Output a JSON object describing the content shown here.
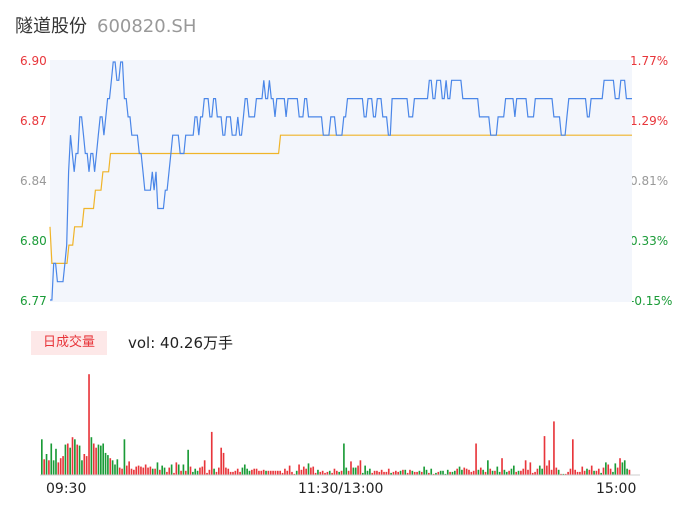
{
  "stock": {
    "name": "隧道股份",
    "code": "600820.SH"
  },
  "colors": {
    "price_line": "#4a86e8",
    "avg_line": "#f0b429",
    "up": "#e8363b",
    "down": "#1a9b37",
    "area": "#f3f6fc"
  },
  "price_axis": {
    "prices": [
      "6.90",
      "6.87",
      "6.84",
      "6.80",
      "6.77"
    ],
    "percents": [
      "1.77%",
      "1.29%",
      "0.81%",
      "0.33%",
      "-0.15%"
    ]
  },
  "volume": {
    "tag": "日成交量",
    "label": "vol: 40.26万手"
  },
  "x_axis": {
    "labels": [
      "09:30",
      "11:30/13:00",
      "15:00"
    ]
  },
  "chart_data": {
    "type": "line",
    "ylim": [
      6.77,
      6.9
    ],
    "series": [
      {
        "name": "price",
        "values": [
          6.77,
          6.77,
          6.79,
          6.79,
          6.78,
          6.78,
          6.78,
          6.78,
          6.79,
          6.8,
          6.84,
          6.86,
          6.85,
          6.84,
          6.85,
          6.85,
          6.87,
          6.87,
          6.86,
          6.85,
          6.85,
          6.84,
          6.85,
          6.85,
          6.84,
          6.85,
          6.86,
          6.87,
          6.87,
          6.86,
          6.87,
          6.88,
          6.88,
          6.89,
          6.9,
          6.9,
          6.89,
          6.89,
          6.9,
          6.9,
          6.88,
          6.88,
          6.87,
          6.87,
          6.86,
          6.86,
          6.86,
          6.86,
          6.85,
          6.85,
          6.84,
          6.83,
          6.83,
          6.83,
          6.83,
          6.84,
          6.83,
          6.84,
          6.82,
          6.82,
          6.82,
          6.82,
          6.83,
          6.83,
          6.84,
          6.85,
          6.86,
          6.86,
          6.86,
          6.86,
          6.85,
          6.85,
          6.85,
          6.86,
          6.86,
          6.86,
          6.86,
          6.86,
          6.87,
          6.87,
          6.86,
          6.87,
          6.87,
          6.88,
          6.88,
          6.88,
          6.87,
          6.87,
          6.88,
          6.88,
          6.87,
          6.87,
          6.87,
          6.86,
          6.86,
          6.87,
          6.87,
          6.87,
          6.86,
          6.86,
          6.86,
          6.87,
          6.86,
          6.86,
          6.87,
          6.88,
          6.88,
          6.87,
          6.87,
          6.87,
          6.87,
          6.88,
          6.88,
          6.88,
          6.88,
          6.89,
          6.88,
          6.88,
          6.89,
          6.88,
          6.88,
          6.87,
          6.88,
          6.88,
          6.88,
          6.88,
          6.88,
          6.87,
          6.88,
          6.88,
          6.88,
          6.88,
          6.88,
          6.88,
          6.87,
          6.87,
          6.87,
          6.88,
          6.88,
          6.87,
          6.87,
          6.87,
          6.87,
          6.87,
          6.87,
          6.87,
          6.87,
          6.86,
          6.86,
          6.86,
          6.86,
          6.87,
          6.87,
          6.87,
          6.86,
          6.86,
          6.86,
          6.86,
          6.87,
          6.87,
          6.88,
          6.88,
          6.88,
          6.88,
          6.88,
          6.88,
          6.88,
          6.88,
          6.88,
          6.87,
          6.87,
          6.88,
          6.88,
          6.88,
          6.87,
          6.87,
          6.88,
          6.88,
          6.88,
          6.87,
          6.87,
          6.87,
          6.86,
          6.86,
          6.88,
          6.88,
          6.88,
          6.88,
          6.88,
          6.88,
          6.88,
          6.88,
          6.88,
          6.87,
          6.87,
          6.87,
          6.88,
          6.88,
          6.88,
          6.88,
          6.88,
          6.88,
          6.88,
          6.88,
          6.89,
          6.89,
          6.88,
          6.88,
          6.89,
          6.89,
          6.89,
          6.88,
          6.88,
          6.89,
          6.88,
          6.88,
          6.89,
          6.89,
          6.89,
          6.89,
          6.89,
          6.89,
          6.88,
          6.88,
          6.88,
          6.88,
          6.88,
          6.88,
          6.88,
          6.88,
          6.88,
          6.87,
          6.87,
          6.87,
          6.87,
          6.87,
          6.87,
          6.86,
          6.86,
          6.86,
          6.86,
          6.87,
          6.87,
          6.87,
          6.87,
          6.88,
          6.88,
          6.88,
          6.88,
          6.88,
          6.87,
          6.88,
          6.88,
          6.88,
          6.88,
          6.88,
          6.88,
          6.87,
          6.87,
          6.87,
          6.87,
          6.88,
          6.88,
          6.88,
          6.88,
          6.88,
          6.88,
          6.88,
          6.88,
          6.88,
          6.88,
          6.87,
          6.87,
          6.87,
          6.87,
          6.86,
          6.86,
          6.86,
          6.87,
          6.88,
          6.88,
          6.88,
          6.88,
          6.88,
          6.88,
          6.88,
          6.88,
          6.88,
          6.88,
          6.87,
          6.87,
          6.88,
          6.88,
          6.88,
          6.88,
          6.88,
          6.88,
          6.88,
          6.89,
          6.89,
          6.89,
          6.89,
          6.89,
          6.89,
          6.88,
          6.88,
          6.88,
          6.89,
          6.89,
          6.89,
          6.88,
          6.88,
          6.88,
          6.88
        ]
      },
      {
        "name": "average",
        "values": [
          6.81,
          6.79,
          6.79,
          6.79,
          6.79,
          6.79,
          6.79,
          6.79,
          6.79,
          6.79,
          6.8,
          6.8,
          6.8,
          6.81,
          6.81,
          6.81,
          6.81,
          6.81,
          6.82,
          6.82,
          6.82,
          6.82,
          6.82,
          6.82,
          6.83,
          6.83,
          6.83,
          6.83,
          6.84,
          6.84,
          6.84,
          6.84,
          6.85,
          6.85,
          6.85,
          6.85,
          6.85,
          6.85,
          6.85,
          6.85,
          6.85,
          6.85,
          6.85,
          6.85,
          6.85,
          6.85,
          6.85,
          6.85,
          6.85,
          6.85,
          6.85,
          6.85,
          6.85,
          6.85,
          6.85,
          6.85,
          6.85,
          6.85,
          6.85,
          6.85,
          6.85,
          6.85,
          6.85,
          6.85,
          6.85,
          6.85,
          6.85,
          6.85,
          6.85,
          6.85,
          6.85,
          6.85,
          6.85,
          6.85,
          6.85,
          6.85,
          6.85,
          6.85,
          6.85,
          6.85,
          6.85,
          6.85,
          6.85,
          6.85,
          6.85,
          6.85,
          6.85,
          6.85,
          6.85,
          6.85,
          6.85,
          6.85,
          6.85,
          6.85,
          6.85,
          6.85,
          6.85,
          6.85,
          6.85,
          6.85,
          6.85,
          6.85,
          6.85,
          6.85,
          6.85,
          6.85,
          6.85,
          6.85,
          6.85,
          6.85,
          6.85,
          6.85,
          6.85,
          6.85,
          6.85,
          6.85,
          6.85,
          6.85,
          6.85,
          6.85,
          6.85,
          6.85,
          6.86,
          6.86,
          6.86,
          6.86,
          6.86,
          6.86,
          6.86,
          6.86,
          6.86,
          6.86,
          6.86,
          6.86,
          6.86,
          6.86,
          6.86,
          6.86,
          6.86,
          6.86,
          6.86,
          6.86,
          6.86,
          6.86,
          6.86,
          6.86,
          6.86,
          6.86,
          6.86,
          6.86,
          6.86,
          6.86,
          6.86,
          6.86,
          6.86,
          6.86,
          6.86,
          6.86,
          6.86,
          6.86,
          6.86,
          6.86,
          6.86,
          6.86,
          6.86,
          6.86,
          6.86,
          6.86,
          6.86,
          6.86,
          6.86,
          6.86,
          6.86,
          6.86,
          6.86,
          6.86,
          6.86,
          6.86,
          6.86,
          6.86,
          6.86,
          6.86,
          6.86,
          6.86,
          6.86,
          6.86,
          6.86,
          6.86,
          6.86,
          6.86,
          6.86,
          6.86,
          6.86,
          6.86,
          6.86,
          6.86,
          6.86,
          6.86,
          6.86,
          6.86,
          6.86,
          6.86,
          6.86,
          6.86,
          6.86,
          6.86,
          6.86,
          6.86,
          6.86,
          6.86,
          6.86,
          6.86,
          6.86,
          6.86,
          6.86,
          6.86,
          6.86,
          6.86,
          6.86,
          6.86,
          6.86,
          6.86,
          6.86,
          6.86,
          6.86,
          6.86,
          6.86,
          6.86,
          6.86,
          6.86,
          6.86,
          6.86,
          6.86,
          6.86,
          6.86,
          6.86,
          6.86,
          6.86,
          6.86,
          6.86,
          6.86,
          6.86,
          6.86,
          6.86,
          6.86,
          6.86,
          6.86,
          6.86,
          6.86,
          6.86,
          6.86,
          6.86,
          6.86,
          6.86,
          6.86,
          6.86,
          6.86,
          6.86,
          6.86,
          6.86,
          6.86,
          6.86,
          6.86,
          6.86,
          6.86,
          6.86,
          6.86,
          6.86,
          6.86,
          6.86,
          6.86,
          6.86,
          6.86,
          6.86,
          6.86,
          6.86,
          6.86,
          6.86,
          6.86,
          6.86,
          6.86,
          6.86,
          6.86,
          6.86,
          6.86,
          6.86,
          6.86,
          6.86,
          6.86,
          6.86,
          6.86,
          6.86,
          6.86,
          6.86,
          6.86,
          6.86,
          6.86,
          6.86,
          6.86,
          6.86,
          6.86,
          6.86,
          6.86,
          6.86,
          6.86,
          6.86,
          6.86,
          6.86,
          6.86
        ]
      }
    ],
    "volume": {
      "values": [
        0.34,
        0.15,
        0.2,
        0.14,
        0.3,
        0.14,
        0.25,
        0.12,
        0.16,
        0.18,
        0.29,
        0.3,
        0.26,
        0.36,
        0.34,
        0.29,
        0.28,
        0.14,
        0.2,
        0.18,
        0.96,
        0.36,
        0.3,
        0.26,
        0.29,
        0.28,
        0.3,
        0.21,
        0.19,
        0.16,
        0.14,
        0.1,
        0.15,
        0.07,
        0.06,
        0.34,
        0.09,
        0.13,
        0.06,
        0.05,
        0.08,
        0.09,
        0.08,
        0.07,
        0.1,
        0.07,
        0.08,
        0.06,
        0.06,
        0.12,
        0.05,
        0.09,
        0.07,
        0.03,
        0.07,
        0.1,
        0.02,
        0.12,
        0.1,
        0.04,
        0.1,
        0.04,
        0.24,
        0.08,
        0.03,
        0.06,
        0.04,
        0.07,
        0.08,
        0.14,
        0.02,
        0.05,
        0.41,
        0.06,
        0.03,
        0.07,
        0.26,
        0.21,
        0.07,
        0.06,
        0.03,
        0.03,
        0.04,
        0.06,
        0.03,
        0.07,
        0.1,
        0.06,
        0.04,
        0.05,
        0.06,
        0.06,
        0.04,
        0.04,
        0.05,
        0.04,
        0.04,
        0.04,
        0.04,
        0.04,
        0.04,
        0.04,
        0.02,
        0.06,
        0.04,
        0.09,
        0.03,
        0.01,
        0.04,
        0.1,
        0.05,
        0.08,
        0.06,
        0.11,
        0.07,
        0.08,
        0.02,
        0.05,
        0.03,
        0.04,
        0.02,
        0.03,
        0.04,
        0.02,
        0.06,
        0.04,
        0.03,
        0.04,
        0.3,
        0.07,
        0.04,
        0.13,
        0.07,
        0.07,
        0.09,
        0.14,
        0.02,
        0.09,
        0.04,
        0.06,
        0.02,
        0.04,
        0.04,
        0.03,
        0.05,
        0.03,
        0.03,
        0.06,
        0.02,
        0.03,
        0.04,
        0.03,
        0.04,
        0.05,
        0.05,
        0.02,
        0.05,
        0.04,
        0.03,
        0.03,
        0.04,
        0.03,
        0.08,
        0.05,
        0.02,
        0.06,
        0.01,
        0.02,
        0.03,
        0.04,
        0.04,
        0.01,
        0.05,
        0.03,
        0.03,
        0.04,
        0.06,
        0.08,
        0.05,
        0.07,
        0.06,
        0.05,
        0.03,
        0.04,
        0.3,
        0.05,
        0.07,
        0.05,
        0.03,
        0.14,
        0.06,
        0.04,
        0.04,
        0.08,
        0.03,
        0.16,
        0.05,
        0.03,
        0.04,
        0.06,
        0.09,
        0.03,
        0.04,
        0.04,
        0.06,
        0.14,
        0.05,
        0.12,
        0.02,
        0.03,
        0.06,
        0.09,
        0.06,
        0.37,
        0.09,
        0.14,
        0.05,
        0.51,
        0.07,
        0.05,
        0.01,
        0.01,
        0.01,
        0.03,
        0.06,
        0.34,
        0.05,
        0.03,
        0.03,
        0.08,
        0.04,
        0.06,
        0.05,
        0.09,
        0.04,
        0.04,
        0.06,
        0.02,
        0.07,
        0.12,
        0.1,
        0.06,
        0.03,
        0.11,
        0.07,
        0.16,
        0.12,
        0.14,
        0.06,
        0.05
      ],
      "colors": [
        "d",
        "u",
        "d",
        "u",
        "d",
        "d",
        "d",
        "u",
        "u",
        "u",
        "d",
        "u",
        "d",
        "u",
        "d",
        "u",
        "d",
        "d",
        "u",
        "u",
        "u",
        "d",
        "u",
        "u",
        "d",
        "d",
        "d",
        "d",
        "d",
        "u",
        "d",
        "d",
        "d",
        "u",
        "u",
        "d",
        "u",
        "u",
        "u",
        "u",
        "u",
        "u",
        "u",
        "u",
        "u",
        "u",
        "u",
        "d",
        "u",
        "d",
        "u",
        "d",
        "d",
        "u",
        "u",
        "d",
        "u",
        "u",
        "d",
        "u",
        "d",
        "u",
        "d",
        "u",
        "d",
        "d",
        "d",
        "u",
        "u",
        "u",
        "u",
        "u",
        "u",
        "d",
        "u",
        "u",
        "u",
        "u",
        "u",
        "u",
        "u",
        "u",
        "u",
        "u",
        "u",
        "d",
        "d",
        "d",
        "d",
        "u",
        "u",
        "u",
        "u",
        "u",
        "u",
        "d",
        "u",
        "u",
        "u",
        "u",
        "u",
        "u",
        "u",
        "u",
        "u",
        "u",
        "u",
        "u",
        "d",
        "u",
        "u",
        "u",
        "u",
        "d",
        "u",
        "u",
        "u",
        "d",
        "u",
        "u",
        "u",
        "u",
        "d",
        "u",
        "u",
        "u",
        "d",
        "u",
        "d",
        "d",
        "u",
        "u",
        "d",
        "d",
        "u",
        "u",
        "d",
        "d",
        "d",
        "d",
        "u",
        "u",
        "u",
        "u",
        "u",
        "u",
        "u",
        "u",
        "d",
        "u",
        "u",
        "u",
        "d",
        "u",
        "d",
        "u",
        "u",
        "d",
        "u",
        "u",
        "d",
        "u",
        "d",
        "d",
        "u",
        "d",
        "u",
        "d",
        "u",
        "d",
        "d",
        "d",
        "d",
        "u",
        "d",
        "d",
        "u",
        "d",
        "d",
        "u",
        "u",
        "u",
        "u",
        "u",
        "u",
        "d",
        "u",
        "d",
        "u",
        "d",
        "u",
        "d",
        "u",
        "d",
        "d",
        "u",
        "d",
        "d",
        "u",
        "d",
        "d",
        "u",
        "d",
        "u",
        "u",
        "u",
        "u",
        "u",
        "u",
        "u",
        "u",
        "d",
        "d",
        "u",
        "u",
        "u",
        "u",
        "u",
        "u",
        "d",
        "u",
        "d",
        "u",
        "u",
        "u",
        "u",
        "u",
        "u",
        "u",
        "u",
        "u",
        "d",
        "u",
        "u",
        "d",
        "u",
        "u",
        "d",
        "u",
        "d",
        "u",
        "u",
        "d",
        "d",
        "u",
        "u",
        "d",
        "d",
        "d",
        "u",
        "u",
        "d",
        "d",
        "d",
        "d",
        "d",
        "u",
        "u",
        "u",
        "u",
        "d",
        "u",
        "u",
        "d",
        "d",
        "u",
        "u",
        "u",
        "u",
        "d",
        "u"
      ]
    }
  }
}
